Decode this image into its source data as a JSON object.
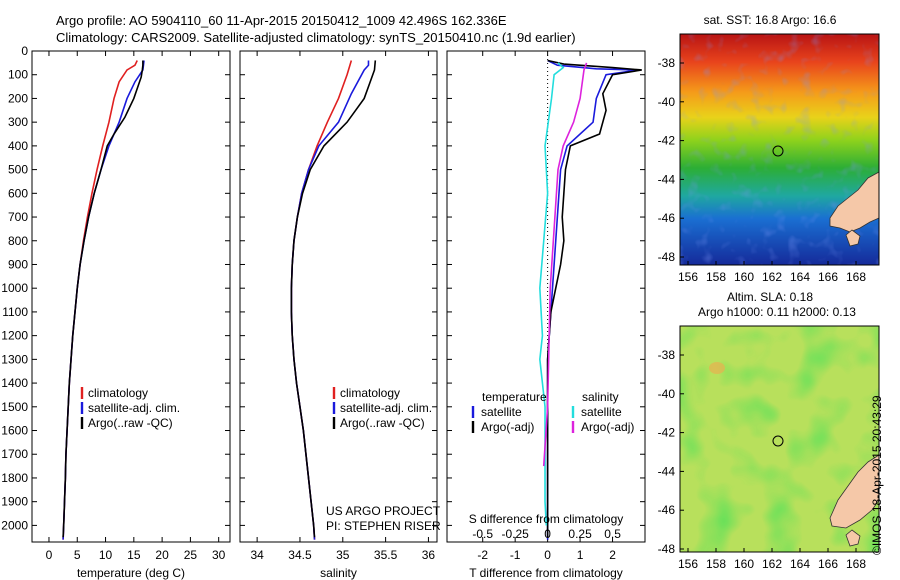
{
  "header": {
    "line1": "Argo profile: AO 5904110_60 11-Apr-2015 20150412_1009 42.496S 162.336E",
    "line2": "Climatology: CARS2009. Satellite-adjusted climatology: synTS_20150410.nc (1.9d earlier)"
  },
  "colors": {
    "climatology": "#e02020",
    "satellite": "#1a1adc",
    "argo": "#000000",
    "satellite_salinity": "#22dddd",
    "argo_salinity": "#dd22dd"
  },
  "chart_data": [
    {
      "type": "line",
      "xlabel": "temperature (deg C)",
      "xlim": [
        -3,
        32
      ],
      "xticks": [
        "0",
        "5",
        "10",
        "15",
        "20",
        "25",
        "30"
      ],
      "yticks": [
        "0",
        "100",
        "200",
        "300",
        "400",
        "500",
        "600",
        "700",
        "800",
        "900",
        "1000",
        "1100",
        "1200",
        "1300",
        "1400",
        "1500",
        "1600",
        "1700",
        "1800",
        "1900",
        "2000"
      ],
      "ylim": [
        0,
        2070
      ],
      "legend": [
        "climatology",
        "satellite-adj. clim.",
        "Argo(..raw -QC)"
      ],
      "series": [
        {
          "name": "climatology",
          "color": "climatology",
          "points": [
            [
              15.6,
              40
            ],
            [
              15.2,
              60
            ],
            [
              13.8,
              80
            ],
            [
              12.4,
              130
            ],
            [
              11.5,
              200
            ],
            [
              10.6,
              300
            ],
            [
              9.5,
              400
            ],
            [
              8.5,
              500
            ],
            [
              7.6,
              600
            ],
            [
              6.8,
              700
            ],
            [
              6.1,
              800
            ],
            [
              5.5,
              900
            ],
            [
              5.0,
              1000
            ],
            [
              4.6,
              1100
            ],
            [
              4.2,
              1200
            ],
            [
              3.9,
              1300
            ],
            [
              3.6,
              1400
            ],
            [
              3.4,
              1500
            ],
            [
              3.2,
              1600
            ],
            [
              3.0,
              1700
            ],
            [
              2.9,
              1800
            ],
            [
              2.75,
              1900
            ],
            [
              2.6,
              2000
            ],
            [
              2.5,
              2060
            ]
          ]
        },
        {
          "name": "satellite-adj. clim.",
          "color": "satellite",
          "points": [
            [
              16.8,
              40
            ],
            [
              16.7,
              60
            ],
            [
              16.6,
              80
            ],
            [
              15.2,
              130
            ],
            [
              13.8,
              200
            ],
            [
              12.4,
              300
            ],
            [
              10.6,
              400
            ],
            [
              9.2,
              500
            ],
            [
              8.0,
              600
            ],
            [
              7.0,
              700
            ],
            [
              6.2,
              800
            ],
            [
              5.5,
              900
            ],
            [
              5.0,
              1000
            ],
            [
              4.6,
              1100
            ],
            [
              4.2,
              1200
            ],
            [
              3.9,
              1300
            ],
            [
              3.6,
              1400
            ],
            [
              3.4,
              1500
            ],
            [
              3.2,
              1600
            ],
            [
              3.0,
              1700
            ],
            [
              2.9,
              1800
            ],
            [
              2.75,
              1900
            ],
            [
              2.6,
              2000
            ],
            [
              2.5,
              2060
            ]
          ]
        },
        {
          "name": "Argo(..raw -QC)",
          "color": "argo",
          "points": [
            [
              16.6,
              40
            ],
            [
              16.6,
              60
            ],
            [
              16.5,
              80
            ],
            [
              16.3,
              110
            ],
            [
              15.0,
              200
            ],
            [
              13.4,
              280
            ],
            [
              11.5,
              350
            ],
            [
              10.3,
              400
            ],
            [
              9.2,
              500
            ],
            [
              8.0,
              600
            ],
            [
              7.0,
              700
            ],
            [
              6.2,
              800
            ],
            [
              5.5,
              900
            ],
            [
              5.0,
              1000
            ],
            [
              4.6,
              1100
            ],
            [
              4.2,
              1200
            ],
            [
              3.9,
              1300
            ],
            [
              3.6,
              1400
            ],
            [
              3.4,
              1500
            ],
            [
              3.2,
              1600
            ],
            [
              3.0,
              1700
            ],
            [
              2.9,
              1800
            ],
            [
              2.75,
              1900
            ],
            [
              2.6,
              2000
            ],
            [
              2.5,
              2050
            ]
          ]
        }
      ]
    },
    {
      "type": "line",
      "xlabel": "salinity",
      "xlim": [
        33.8,
        36.1
      ],
      "xticks": [
        "34",
        "34.5",
        "35",
        "35.5",
        "36"
      ],
      "legend": [
        "climatology",
        "satellite-adj. clim.",
        "Argo(..raw -QC)"
      ],
      "annotations": [
        "US ARGO PROJECT",
        "PI: STEPHEN RISER"
      ],
      "series": [
        {
          "name": "climatology",
          "color": "climatology",
          "points": [
            [
              35.1,
              40
            ],
            [
              35.05,
              100
            ],
            [
              34.95,
              200
            ],
            [
              34.82,
              300
            ],
            [
              34.7,
              400
            ],
            [
              34.6,
              500
            ],
            [
              34.52,
              600
            ],
            [
              34.47,
              700
            ],
            [
              34.43,
              800
            ],
            [
              34.41,
              900
            ],
            [
              34.4,
              1000
            ],
            [
              34.4,
              1100
            ],
            [
              34.41,
              1200
            ],
            [
              34.43,
              1300
            ],
            [
              34.46,
              1400
            ],
            [
              34.5,
              1500
            ],
            [
              34.54,
              1600
            ],
            [
              34.57,
              1700
            ],
            [
              34.6,
              1800
            ],
            [
              34.63,
              1900
            ],
            [
              34.66,
              2000
            ],
            [
              34.67,
              2060
            ]
          ]
        },
        {
          "name": "satellite-adj. clim.",
          "color": "satellite",
          "points": [
            [
              35.3,
              40
            ],
            [
              35.3,
              60
            ],
            [
              35.25,
              80
            ],
            [
              35.1,
              180
            ],
            [
              34.95,
              300
            ],
            [
              34.72,
              400
            ],
            [
              34.6,
              500
            ],
            [
              34.52,
              600
            ],
            [
              34.47,
              700
            ],
            [
              34.43,
              800
            ],
            [
              34.41,
              900
            ],
            [
              34.4,
              1000
            ],
            [
              34.4,
              1100
            ],
            [
              34.41,
              1200
            ],
            [
              34.43,
              1300
            ],
            [
              34.46,
              1400
            ],
            [
              34.5,
              1500
            ],
            [
              34.54,
              1600
            ],
            [
              34.57,
              1700
            ],
            [
              34.6,
              1800
            ],
            [
              34.63,
              1900
            ],
            [
              34.66,
              2000
            ],
            [
              34.67,
              2060
            ]
          ]
        },
        {
          "name": "Argo(..raw -QC)",
          "color": "argo",
          "points": [
            [
              35.38,
              40
            ],
            [
              35.37,
              80
            ],
            [
              35.32,
              130
            ],
            [
              35.25,
              200
            ],
            [
              35.05,
              300
            ],
            [
              34.78,
              400
            ],
            [
              34.62,
              500
            ],
            [
              34.53,
              600
            ],
            [
              34.47,
              700
            ],
            [
              34.43,
              800
            ],
            [
              34.41,
              900
            ],
            [
              34.4,
              1000
            ],
            [
              34.4,
              1100
            ],
            [
              34.41,
              1200
            ],
            [
              34.43,
              1300
            ],
            [
              34.46,
              1400
            ],
            [
              34.5,
              1500
            ],
            [
              34.54,
              1600
            ],
            [
              34.57,
              1700
            ],
            [
              34.6,
              1800
            ],
            [
              34.63,
              1900
            ],
            [
              34.66,
              2000
            ],
            [
              34.67,
              2050
            ]
          ]
        }
      ]
    },
    {
      "type": "line",
      "xlabel": "T difference from climatology",
      "xlabel2": "S difference from climatology",
      "xlim": [
        -3.1,
        3.0
      ],
      "xticks": [
        "-2",
        "-1",
        "0",
        "1",
        "2"
      ],
      "xticks2": [
        "-0.5",
        "-0.25",
        "0",
        "0.25",
        "0.5"
      ],
      "legend_headers": [
        "temperature",
        "salinity"
      ],
      "legend": [
        "satellite",
        "Argo(-adj)",
        "satellite",
        "Argo(-adj)"
      ],
      "series": [
        {
          "name": "satellite",
          "color": "satellite",
          "points": [
            [
              0,
              40
            ],
            [
              0.3,
              60
            ],
            [
              1.5,
              75
            ],
            [
              2.8,
              80
            ],
            [
              1.8,
              100
            ],
            [
              1.5,
              200
            ],
            [
              1.4,
              300
            ],
            [
              0.6,
              400
            ],
            [
              0.4,
              500
            ],
            [
              0.35,
              600
            ],
            [
              0.3,
              700
            ],
            [
              0.25,
              800
            ],
            [
              0.2,
              900
            ],
            [
              0.15,
              1000
            ],
            [
              0.1,
              1100
            ],
            [
              0.05,
              1200
            ],
            [
              0,
              1300
            ],
            [
              0,
              2060
            ]
          ]
        },
        {
          "name": "Argo(-adj)",
          "color": "argo",
          "points": [
            [
              0,
              40
            ],
            [
              0.5,
              55
            ],
            [
              2.0,
              70
            ],
            [
              2.9,
              80
            ],
            [
              2.0,
              100
            ],
            [
              1.7,
              180
            ],
            [
              1.8,
              250
            ],
            [
              1.6,
              350
            ],
            [
              0.7,
              400
            ],
            [
              0.55,
              500
            ],
            [
              0.5,
              600
            ],
            [
              0.45,
              700
            ],
            [
              0.5,
              800
            ],
            [
              0.4,
              900
            ],
            [
              0.25,
              1000
            ],
            [
              0.1,
              1100
            ],
            [
              0.05,
              1200
            ],
            [
              0,
              1300
            ],
            [
              0,
              2050
            ]
          ]
        },
        {
          "name": "satellite",
          "color": "satellite_salinity",
          "points": [
            [
              0.08,
              50
            ],
            [
              0.12,
              70
            ],
            [
              0.05,
              100
            ],
            [
              0.03,
              200
            ],
            [
              -0.02,
              400
            ],
            [
              0,
              600
            ],
            [
              -0.03,
              800
            ],
            [
              -0.06,
              1000
            ],
            [
              -0.04,
              1200
            ],
            [
              -0.06,
              1300
            ],
            [
              -0.02,
              1500
            ],
            [
              -0.02,
              1700
            ],
            [
              -0.02,
              1900
            ],
            [
              -0.01,
              2000
            ]
          ]
        },
        {
          "name": "Argo(-adj)",
          "color": "argo_salinity",
          "points": [
            [
              0.3,
              50
            ],
            [
              0.28,
              80
            ],
            [
              0.25,
              200
            ],
            [
              0.2,
              300
            ],
            [
              0.12,
              400
            ],
            [
              0.08,
              500
            ],
            [
              0.02,
              1000
            ],
            [
              0,
              1500
            ],
            [
              -0.03,
              1750
            ]
          ]
        }
      ]
    },
    {
      "type": "heatmap",
      "title": "sat. SST: 16.8 Argo: 16.6",
      "xticks": [
        "156",
        "158",
        "160",
        "162",
        "164",
        "166",
        "168"
      ],
      "yticks": [
        "-38",
        "-40",
        "-42",
        "-44",
        "-46",
        "-48"
      ],
      "profile_position": [
        162.336,
        -42.496
      ]
    },
    {
      "type": "heatmap",
      "title": "Altim. SLA: 0.18",
      "subtitle": "Argo h1000: 0.11 h2000: 0.13",
      "xticks": [
        "156",
        "158",
        "160",
        "162",
        "164",
        "166",
        "168"
      ],
      "yticks": [
        "-38",
        "-40",
        "-42",
        "-44",
        "-46",
        "-48"
      ],
      "profile_position": [
        162.336,
        -42.496
      ]
    }
  ],
  "footer": {
    "stamp": "©IMOS 18-Apr-2015 20:43:29"
  }
}
